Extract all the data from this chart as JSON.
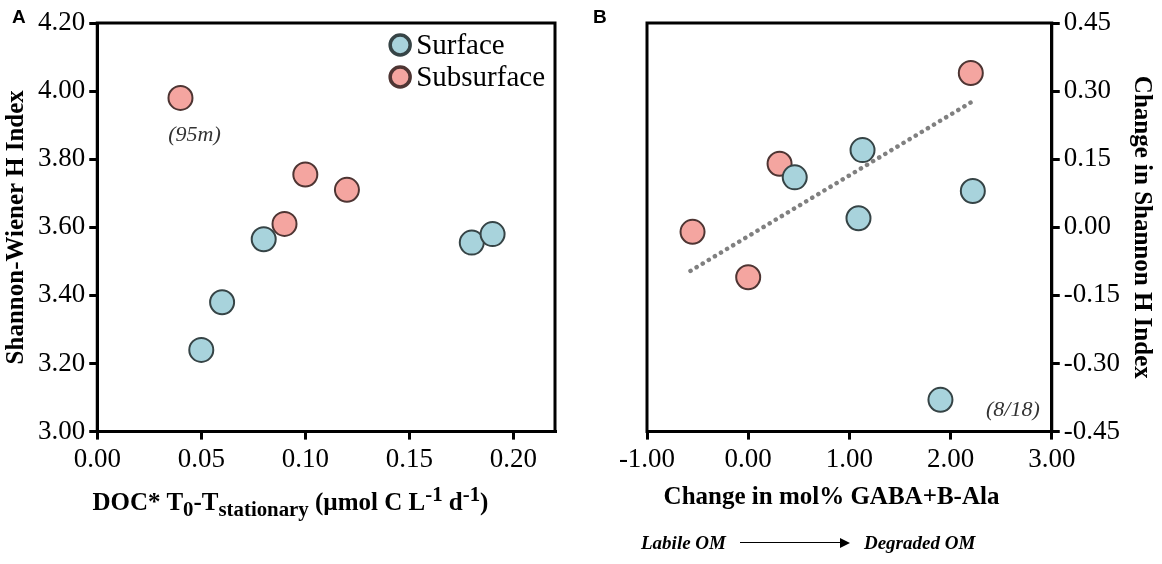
{
  "chart_data": [
    {
      "type": "scatter",
      "title": "A",
      "xlabel": "DOC* T$_{0}$-T$_{stationary}$ (µmol C L$^{-1}$ d$^{-1}$)",
      "ylabel": "Shannon-Wiener H Index",
      "xlim": [
        0,
        0.22
      ],
      "xticks": [
        {
          "value": 0,
          "label": "0.00"
        },
        {
          "value": 0.05,
          "label": "0.05"
        },
        {
          "value": 0.1,
          "label": "0.10"
        },
        {
          "value": 0.15,
          "label": "0.15"
        },
        {
          "value": 0.2,
          "label": "0.20"
        }
      ],
      "ylim": [
        3,
        4.2
      ],
      "yticks": [
        {
          "value": 3,
          "label": "3.00"
        },
        {
          "value": 3.2,
          "label": "3.20"
        },
        {
          "value": 3.4,
          "label": "3.40"
        },
        {
          "value": 3.6,
          "label": "3.60"
        },
        {
          "value": 3.8,
          "label": "3.80"
        },
        {
          "value": 4,
          "label": "4.00"
        },
        {
          "value": 4.2,
          "label": "4.20"
        }
      ],
      "series": [
        {
          "name": "Surface",
          "color": "#a8d3dc",
          "x": [
            0.05,
            0.06,
            0.08,
            0.18,
            0.19
          ],
          "values": [
            3.24,
            3.38,
            3.565,
            3.555,
            3.58
          ]
        },
        {
          "name": "Subsurface",
          "color": "#f4a5a0",
          "x": [
            0.04,
            0.09,
            0.1,
            0.12
          ],
          "values": [
            3.98,
            3.61,
            3.755,
            3.71
          ]
        }
      ],
      "marker": "circle",
      "legend": "top right",
      "grid": false,
      "annotations": [
        {
          "text": "(95m)",
          "x": 0.04,
          "y": 3.98
        }
      ]
    },
    {
      "type": "scatter",
      "title": "B",
      "xlabel": "Change in mol% GABA+B-Ala",
      "y2label": "Change in Shannon H Index",
      "xlim": [
        -1,
        3
      ],
      "xticks": [
        {
          "value": -1,
          "label": "-1.00"
        },
        {
          "value": 0,
          "label": "0.00"
        },
        {
          "value": 1,
          "label": "1.00"
        },
        {
          "value": 2,
          "label": "2.00"
        },
        {
          "value": 3,
          "label": "3.00"
        }
      ],
      "y2lim": [
        -0.45,
        0.45
      ],
      "y2ticks": [
        {
          "value": -0.45,
          "label": "-0.45"
        },
        {
          "value": -0.3,
          "label": "-0.30"
        },
        {
          "value": -0.15,
          "label": "-0.15"
        },
        {
          "value": 0,
          "label": "0.00"
        },
        {
          "value": 0.15,
          "label": "0.15"
        },
        {
          "value": 0.3,
          "label": "0.30"
        },
        {
          "value": 0.45,
          "label": "0.45"
        }
      ],
      "series": [
        {
          "color": "#a8d3dc",
          "axis": "y2",
          "x": [
            0.46,
            1.13,
            1.09,
            2.22,
            1.9
          ],
          "values": [
            0.11,
            0.17,
            0.02,
            0.08,
            -0.38
          ]
        },
        {
          "color": "#f4a5a0",
          "axis": "y2",
          "x": [
            -0.55,
            0,
            0.31,
            2.2
          ],
          "values": [
            -0.01,
            -0.11,
            0.14,
            0.34
          ]
        },
        {
          "type": "line",
          "color": "#808080",
          "axis": "y2",
          "line_style": "dotted",
          "marker": "none",
          "x": [
            -0.57,
            2.2
          ],
          "values": [
            -0.096,
            0.275
          ]
        }
      ],
      "marker": "circle",
      "grid": false,
      "annotations": [
        "(8/18)",
        "Labile OM",
        "Degraded OM"
      ]
    }
  ]
}
